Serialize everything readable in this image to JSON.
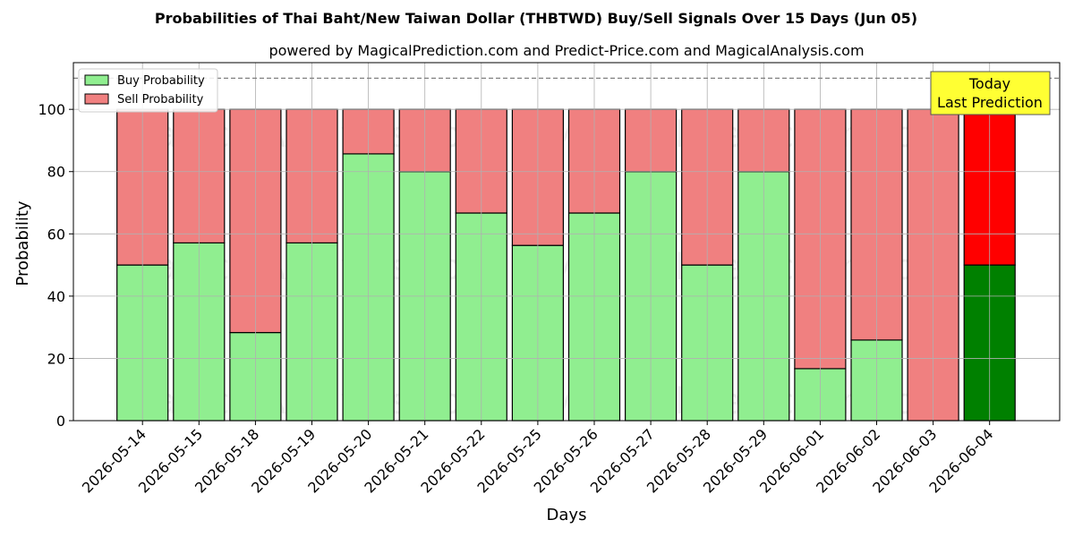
{
  "chart_data": {
    "type": "bar",
    "stacked": true,
    "title": "Probabilities of Thai Baht/New Taiwan Dollar (THBTWD) Buy/Sell Signals Over 15 Days (Jun 05)",
    "subtitle": "powered by MagicalPrediction.com and Predict-Price.com and MagicalAnalysis.com",
    "xlabel": "Days",
    "ylabel": "Probability",
    "ylim": [
      0,
      115
    ],
    "yticks": [
      0,
      20,
      40,
      60,
      80,
      100
    ],
    "grid": true,
    "legend_position": "top-left",
    "reference_line": {
      "y": 110,
      "style": "dashed"
    },
    "categories": [
      "2026-05-14",
      "2026-05-15",
      "2026-05-18",
      "2026-05-19",
      "2026-05-20",
      "2026-05-21",
      "2026-05-22",
      "2026-05-25",
      "2026-05-26",
      "2026-05-27",
      "2026-05-28",
      "2026-05-29",
      "2026-06-01",
      "2026-06-02",
      "2026-06-03",
      "2026-06-04"
    ],
    "series": [
      {
        "name": "Buy Probability",
        "color": "#90ee90",
        "highlight_color": "#008000",
        "values": [
          50,
          57.1,
          28.3,
          57.1,
          85.7,
          80,
          66.7,
          56.3,
          66.7,
          80,
          50,
          80,
          16.7,
          25.9,
          0,
          50
        ]
      },
      {
        "name": "Sell Probability",
        "color": "#f08080",
        "highlight_color": "#ff0000",
        "values": [
          50,
          42.9,
          71.7,
          42.9,
          14.3,
          20,
          33.3,
          43.7,
          33.3,
          20,
          50,
          20,
          83.3,
          74.1,
          100,
          50
        ]
      }
    ],
    "highlight_index": 15,
    "annotation": {
      "lines": [
        "Today",
        "Last Prediction"
      ],
      "background": "#ffff33"
    },
    "watermarks": [
      "MagicalAnalysis.com",
      "MagicalPrediction.com"
    ]
  }
}
